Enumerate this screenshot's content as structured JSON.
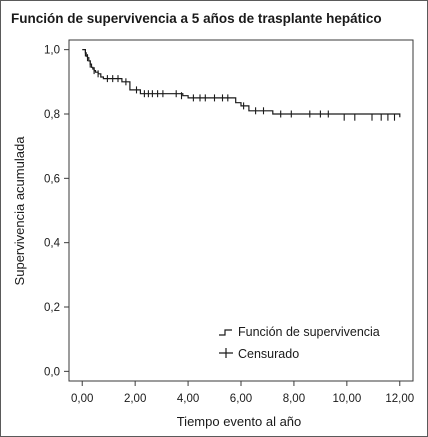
{
  "chart_data": {
    "type": "line",
    "title": "Función de supervivencia a 5 años de trasplante hepático",
    "xlabel": "Tiempo evento al año",
    "ylabel": "Supervivencia acumulada",
    "xlim": [
      -0.5,
      12.5
    ],
    "ylim": [
      -0.03,
      1.03
    ],
    "x_ticks": [
      0,
      2,
      4,
      6,
      8,
      10,
      12
    ],
    "x_tick_labels": [
      "0,00",
      "2,00",
      "4,00",
      "6,00",
      "8,00",
      "10,00",
      "12,00"
    ],
    "y_ticks": [
      0,
      0.2,
      0.4,
      0.6,
      0.8,
      1.0
    ],
    "y_tick_labels": [
      "0,0",
      "0,2",
      "0,4",
      "0,6",
      "0,8",
      "1,0"
    ],
    "grid": false,
    "legend": {
      "placement": "bottom-right",
      "entries": [
        "Función de supervivencia",
        "Censurado"
      ]
    },
    "line_color": "#1a1a1a",
    "series": [
      {
        "name": "Función de supervivencia",
        "style": "step",
        "x": [
          0,
          0.12,
          0.15,
          0.2,
          0.25,
          0.3,
          0.35,
          0.4,
          0.45,
          0.5,
          0.6,
          0.7,
          0.8,
          1.5,
          1.8,
          2.2,
          3.8,
          4.0,
          5.8,
          6.0,
          6.3,
          7.2,
          12.0
        ],
        "y": [
          1.0,
          0.99,
          0.98,
          0.975,
          0.965,
          0.955,
          0.945,
          0.94,
          0.935,
          0.93,
          0.925,
          0.915,
          0.91,
          0.9,
          0.875,
          0.863,
          0.857,
          0.85,
          0.835,
          0.825,
          0.81,
          0.8,
          0.79
        ]
      },
      {
        "name": "Censurado",
        "style": "markers",
        "x": [
          0.12,
          0.2,
          0.3,
          0.45,
          0.6,
          0.95,
          1.15,
          1.35,
          1.65,
          2.05,
          2.35,
          2.5,
          2.65,
          2.85,
          3.05,
          3.55,
          3.75,
          4.2,
          4.45,
          4.65,
          5.0,
          5.3,
          5.5,
          6.1,
          6.55,
          6.85,
          7.5,
          7.9,
          8.6,
          9.0,
          9.3,
          9.9,
          10.3,
          10.95,
          11.3,
          11.55,
          11.8
        ],
        "y": [
          0.99,
          0.975,
          0.955,
          0.935,
          0.925,
          0.91,
          0.91,
          0.91,
          0.9,
          0.875,
          0.863,
          0.863,
          0.863,
          0.863,
          0.863,
          0.863,
          0.857,
          0.85,
          0.85,
          0.85,
          0.85,
          0.85,
          0.85,
          0.825,
          0.81,
          0.81,
          0.8,
          0.8,
          0.8,
          0.8,
          0.8,
          0.79,
          0.79,
          0.79,
          0.79,
          0.79,
          0.79
        ]
      }
    ]
  }
}
